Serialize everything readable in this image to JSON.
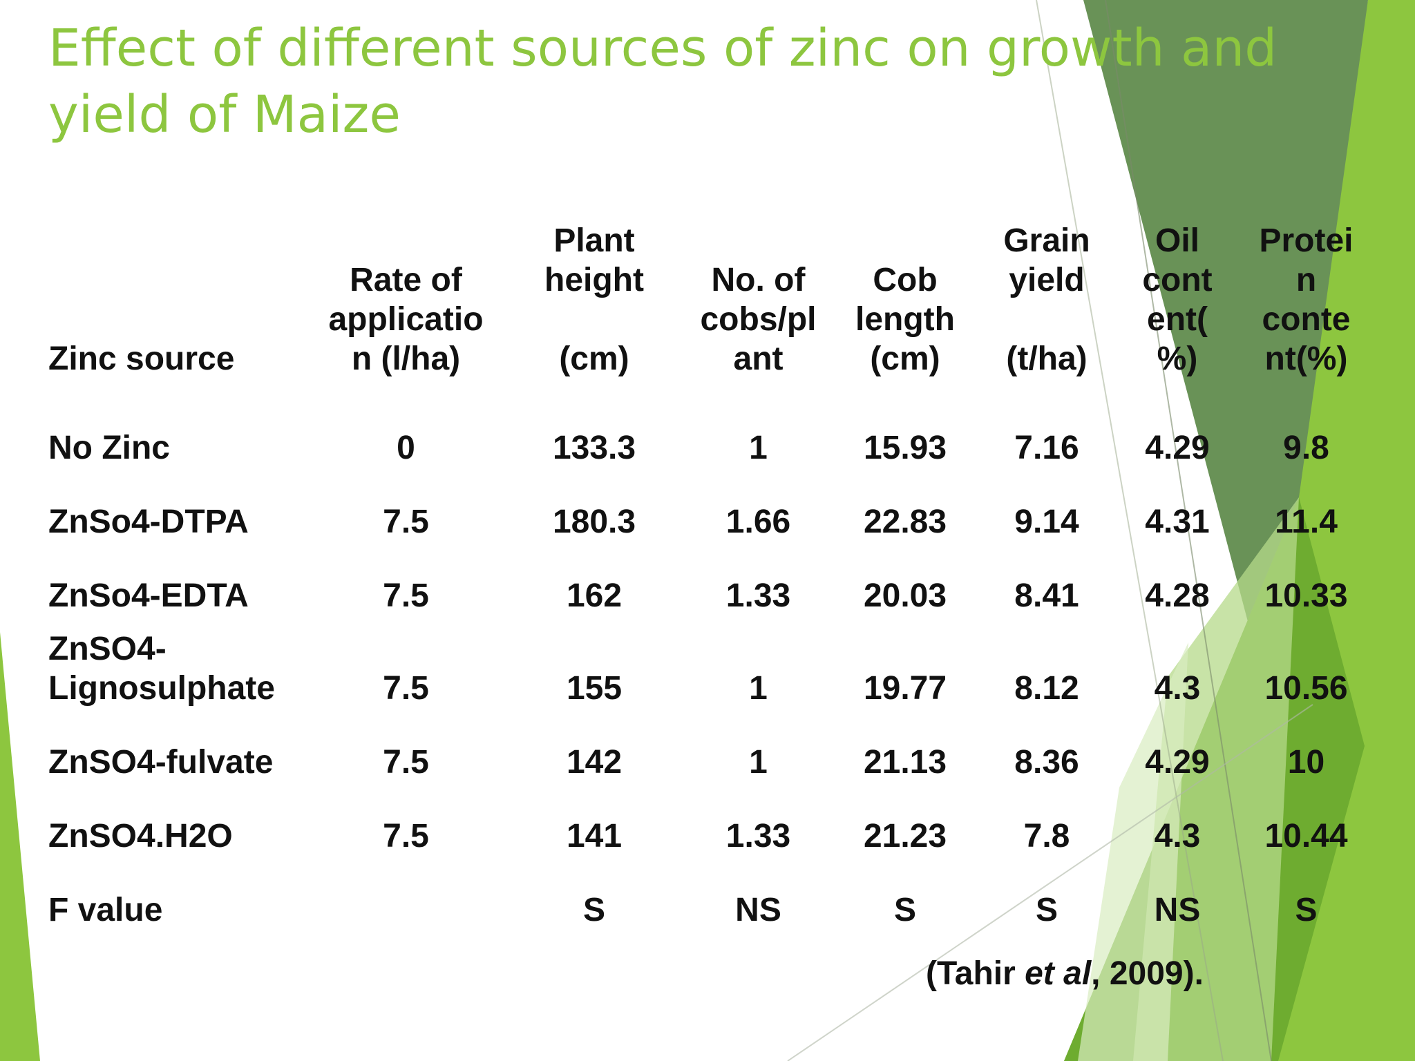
{
  "slide": {
    "title_line1": "Effect of different sources of zinc on growth and",
    "title_line2": "yield of Maize",
    "title_color": "#8dc63f",
    "decoration_colors": [
      "#8dc63f",
      "#6aa82f",
      "#4f7f3a",
      "#b6d98a",
      "#d9ecc0"
    ]
  },
  "table": {
    "headers": [
      "Zinc source",
      "Rate of\napplicatio\nn (l/ha)",
      "Plant\nheight\n\n(cm)",
      "No. of\ncobs/pl\nant",
      "Cob\nlength\n(cm)",
      "Grain\nyield\n\n(t/ha)",
      "Oil\ncont\nent(\n%)",
      "Protei\nn\nconte\nnt(%)"
    ],
    "rows": [
      [
        "No Zinc",
        "0",
        "133.3",
        "1",
        "15.93",
        "7.16",
        "4.29",
        "9.8"
      ],
      [
        "ZnSo4-DTPA",
        "7.5",
        "180.3",
        "1.66",
        "22.83",
        "9.14",
        "4.31",
        "11.4"
      ],
      [
        "ZnSo4-EDTA",
        "7.5",
        "162",
        "1.33",
        "20.03",
        "8.41",
        "4.28",
        "10.33"
      ],
      [
        "ZnSO4-\nLignosulphate",
        "7.5",
        "155",
        "1",
        "19.77",
        "8.12",
        "4.3",
        "10.56"
      ],
      [
        "ZnSO4-fulvate",
        "7.5",
        "142",
        "1",
        "21.13",
        "8.36",
        "4.29",
        "10"
      ],
      [
        "ZnSO4.H2O",
        "7.5",
        "141",
        "1.33",
        "21.23",
        "7.8",
        "4.3",
        "10.44"
      ],
      [
        "F value",
        "",
        "S",
        "NS",
        "S",
        "S",
        "NS",
        "S"
      ]
    ]
  },
  "citation": {
    "open": "(Tahir ",
    "italic": "et al",
    "close": ", 2009)."
  }
}
